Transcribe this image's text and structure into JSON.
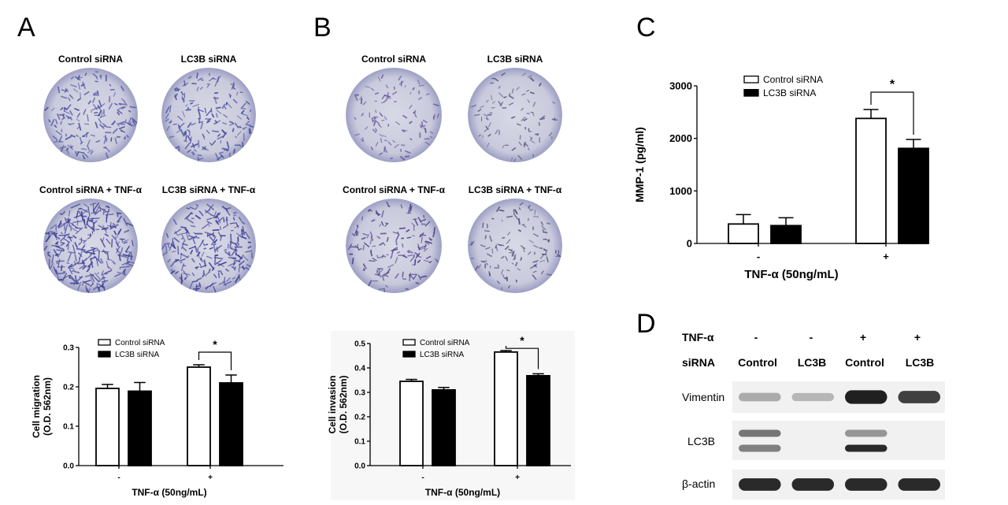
{
  "panels": {
    "a": {
      "label": "A"
    },
    "b": {
      "label": "B"
    },
    "c": {
      "label": "C"
    },
    "d": {
      "label": "D"
    }
  },
  "panel_a": {
    "dishes": [
      {
        "caption": "Control siRNA",
        "density": 0.55,
        "tint": "#4b4f9e"
      },
      {
        "caption": "LC3B siRNA",
        "density": 0.55,
        "tint": "#4b4f9e"
      },
      {
        "caption": "Control siRNA + TNF-α",
        "density": 1.0,
        "tint": "#3e3f95"
      },
      {
        "caption": "LC3B siRNA + TNF-α",
        "density": 0.8,
        "tint": "#3e3f95"
      }
    ]
  },
  "panel_b": {
    "dishes": [
      {
        "caption": "Control siRNA",
        "density": 0.25,
        "tint": "#6a5aa0"
      },
      {
        "caption": "LC3B siRNA",
        "density": 0.2,
        "tint": "#5d5d88"
      },
      {
        "caption": "Control siRNA + TNF-α",
        "density": 0.45,
        "tint": "#4d3f8a"
      },
      {
        "caption": "LC3B siRNA + TNF-α",
        "density": 0.3,
        "tint": "#4d4d78"
      }
    ]
  },
  "chart_data": [
    {
      "type": "bar",
      "panel": "A",
      "categories": [
        "-",
        "+"
      ],
      "xlabel": "TNF-α (50ng/mL)",
      "ylabel": "Cell migration\n(O.D. 562nm)",
      "ylim": [
        0,
        0.3
      ],
      "yticks": [
        "0.0",
        "0.1",
        "0.2",
        "0.3"
      ],
      "legend": "top-left",
      "significance": "*",
      "series": [
        {
          "name": "Control siRNA",
          "fill": "#ffffff",
          "values": [
            0.196,
            0.25
          ],
          "errors": [
            0.01,
            0.006
          ]
        },
        {
          "name": "LC3B siRNA",
          "fill": "#000000",
          "values": [
            0.189,
            0.21
          ],
          "errors": [
            0.022,
            0.02
          ]
        }
      ]
    },
    {
      "type": "bar",
      "panel": "B",
      "categories": [
        "-",
        "+"
      ],
      "xlabel": "TNF-α (50ng/mL)",
      "ylabel": "Cell invasion\n(O.D. 562nm)",
      "ylim": [
        0,
        0.5
      ],
      "yticks": [
        "0.0",
        "0.1",
        "0.2",
        "0.3",
        "0.4",
        "0.5"
      ],
      "legend": "top-left",
      "significance": "*",
      "series": [
        {
          "name": "Control siRNA",
          "fill": "#ffffff",
          "values": [
            0.345,
            0.465
          ],
          "errors": [
            0.008,
            0.006
          ]
        },
        {
          "name": "LC3B siRNA",
          "fill": "#000000",
          "values": [
            0.31,
            0.368
          ],
          "errors": [
            0.01,
            0.008
          ]
        }
      ]
    },
    {
      "type": "bar",
      "panel": "C",
      "categories": [
        "-",
        "+"
      ],
      "xlabel": "TNF-α  (50ng/mL)",
      "ylabel": "MMP-1 (pg/ml)",
      "ylim": [
        0,
        3000
      ],
      "yticks": [
        "0",
        "1000",
        "2000",
        "3000"
      ],
      "legend": "top-left",
      "significance": "*",
      "series": [
        {
          "name": "Control siRNA",
          "fill": "#ffffff",
          "values": [
            370,
            2380
          ],
          "errors": [
            180,
            170
          ]
        },
        {
          "name": "LC3B siRNA",
          "fill": "#000000",
          "values": [
            340,
            1810
          ],
          "errors": [
            150,
            170
          ]
        }
      ]
    }
  ],
  "panel_d": {
    "header_rows": [
      {
        "label": "TNF-α",
        "values": [
          "-",
          "-",
          "+",
          "+"
        ]
      },
      {
        "label": "siRNA",
        "values": [
          "Control",
          "LC3B",
          "Control",
          "LC3B"
        ]
      }
    ],
    "blots": [
      {
        "label": "Vimentin",
        "bands": [
          [
            0.35
          ],
          [
            0.3
          ],
          [
            1.0
          ],
          [
            0.85
          ]
        ]
      },
      {
        "label": "LC3B",
        "bands": [
          [
            0.6,
            0.55
          ],
          [
            0.0,
            0.0
          ],
          [
            0.45,
            0.95
          ],
          [
            0.0,
            0.0
          ]
        ]
      },
      {
        "label": "β-actin",
        "bands": [
          [
            0.95
          ],
          [
            0.95
          ],
          [
            0.95
          ],
          [
            0.95
          ]
        ]
      }
    ]
  }
}
